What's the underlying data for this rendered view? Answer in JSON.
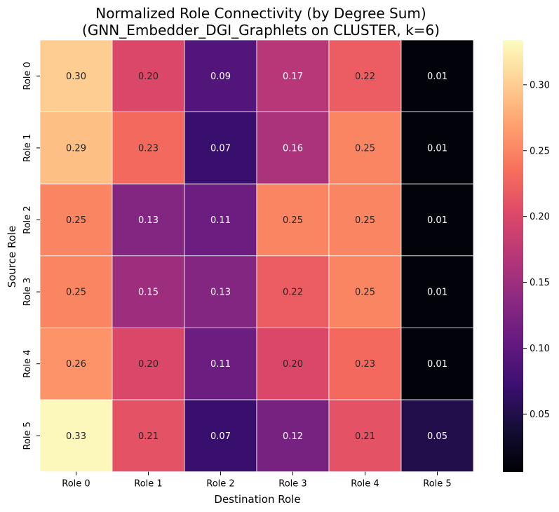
{
  "chart_data": {
    "type": "heatmap",
    "title_lines": [
      "Normalized Role Connectivity (by Degree Sum)",
      "(GNN_Embedder_DGI_Graphlets on CLUSTER, k=6)"
    ],
    "xlabel": "Destination Role",
    "ylabel": "Source Role",
    "x_categories": [
      "Role 0",
      "Role 1",
      "Role 2",
      "Role 3",
      "Role 4",
      "Role 5"
    ],
    "y_categories": [
      "Role 0",
      "Role 1",
      "Role 2",
      "Role 3",
      "Role 4",
      "Role 5"
    ],
    "values": [
      [
        0.3,
        0.2,
        0.09,
        0.17,
        0.22,
        0.01
      ],
      [
        0.29,
        0.23,
        0.07,
        0.16,
        0.25,
        0.01
      ],
      [
        0.25,
        0.13,
        0.11,
        0.25,
        0.25,
        0.01
      ],
      [
        0.25,
        0.15,
        0.13,
        0.22,
        0.25,
        0.01
      ],
      [
        0.26,
        0.2,
        0.11,
        0.2,
        0.23,
        0.01
      ],
      [
        0.33,
        0.21,
        0.07,
        0.12,
        0.21,
        0.05
      ]
    ],
    "value_format": "0.00",
    "colormap": "magma",
    "colorbar": {
      "range": [
        0.006,
        0.334
      ],
      "ticks": [
        0.05,
        0.1,
        0.15,
        0.2,
        0.25,
        0.3
      ],
      "tick_labels": [
        "0.05",
        "0.10",
        "0.15",
        "0.20",
        "0.25",
        "0.30"
      ],
      "placement": "right"
    },
    "cell_border_color": "#ffffff",
    "grid": false
  }
}
